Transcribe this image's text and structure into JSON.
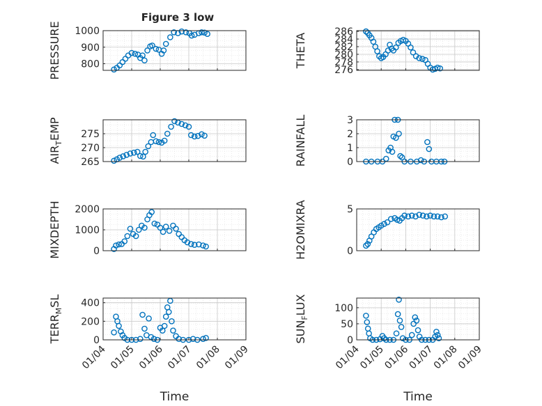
{
  "title": "Figure 3 low",
  "colors": {
    "marker": "#0072bd",
    "grid": "#dcdcdc",
    "axis": "#262626"
  },
  "chart_data": [
    {
      "type": "scatter",
      "id": "pressure",
      "ylabel": "PRESSURE",
      "ylim": [
        760,
        1000
      ],
      "yticks": [
        800,
        900,
        1000
      ],
      "yticklabels": [
        "800",
        "900",
        "1000"
      ],
      "xlim": [
        0,
        5
      ],
      "xticks": [
        0,
        1,
        2,
        3,
        4,
        5
      ],
      "xticklabels": [
        "01/04",
        "01/05",
        "01/06",
        "01/07",
        "01/08",
        "01/09"
      ],
      "show_xticklabels": false,
      "xlabel": "",
      "grid": true,
      "marker": "circle",
      "points": [
        [
          0.38,
          765
        ],
        [
          0.48,
          775
        ],
        [
          0.58,
          790
        ],
        [
          0.68,
          810
        ],
        [
          0.78,
          830
        ],
        [
          0.88,
          850
        ],
        [
          1.0,
          865
        ],
        [
          1.12,
          860
        ],
        [
          1.22,
          855
        ],
        [
          1.3,
          835
        ],
        [
          1.38,
          850
        ],
        [
          1.45,
          820
        ],
        [
          1.55,
          880
        ],
        [
          1.65,
          905
        ],
        [
          1.72,
          910
        ],
        [
          1.85,
          890
        ],
        [
          1.95,
          885
        ],
        [
          2.05,
          860
        ],
        [
          2.12,
          880
        ],
        [
          2.2,
          920
        ],
        [
          2.35,
          960
        ],
        [
          2.48,
          990
        ],
        [
          2.62,
          985
        ],
        [
          2.75,
          995
        ],
        [
          2.9,
          990
        ],
        [
          3.02,
          985
        ],
        [
          3.1,
          970
        ],
        [
          3.2,
          975
        ],
        [
          3.35,
          985
        ],
        [
          3.45,
          990
        ],
        [
          3.55,
          988
        ],
        [
          3.65,
          980
        ]
      ]
    },
    {
      "type": "scatter",
      "id": "theta",
      "ylabel": "THETA",
      "ylim": [
        275.8,
        286.2
      ],
      "yticks": [
        276,
        278,
        280,
        282,
        284,
        286
      ],
      "yticklabels": [
        "276",
        "278",
        "280",
        "282",
        "284",
        "286"
      ],
      "xlim": [
        0,
        5
      ],
      "xticks": [
        0,
        1,
        2,
        3,
        4,
        5
      ],
      "xticklabels": [
        "01/04",
        "01/05",
        "01/06",
        "01/07",
        "01/08",
        "01/09"
      ],
      "show_xticklabels": false,
      "xlabel": "",
      "grid": true,
      "marker": "circle",
      "points": [
        [
          0.38,
          286
        ],
        [
          0.45,
          285.6
        ],
        [
          0.52,
          285
        ],
        [
          0.6,
          284.3
        ],
        [
          0.68,
          283.3
        ],
        [
          0.76,
          282
        ],
        [
          0.84,
          280.8
        ],
        [
          0.92,
          279.5
        ],
        [
          1.0,
          279
        ],
        [
          1.08,
          279.3
        ],
        [
          1.18,
          280
        ],
        [
          1.28,
          281
        ],
        [
          1.35,
          282.5
        ],
        [
          1.42,
          281.5
        ],
        [
          1.5,
          281
        ],
        [
          1.6,
          281.8
        ],
        [
          1.7,
          283
        ],
        [
          1.8,
          283.5
        ],
        [
          1.9,
          283.8
        ],
        [
          2.0,
          283.5
        ],
        [
          2.1,
          282.8
        ],
        [
          2.2,
          281.8
        ],
        [
          2.3,
          280.5
        ],
        [
          2.42,
          279.5
        ],
        [
          2.55,
          279
        ],
        [
          2.68,
          278.8
        ],
        [
          2.8,
          278.5
        ],
        [
          2.9,
          277.5
        ],
        [
          3.0,
          276.5
        ],
        [
          3.1,
          276
        ],
        [
          3.2,
          276.2
        ],
        [
          3.3,
          276.5
        ],
        [
          3.4,
          276.3
        ]
      ]
    },
    {
      "type": "scatter",
      "id": "air_temp",
      "ylabel": "AIR_TEMP",
      "ylim": [
        265,
        280
      ],
      "yticks": [
        265,
        270,
        275
      ],
      "yticklabels": [
        "265",
        "270",
        "275"
      ],
      "xlim": [
        0,
        5
      ],
      "xticks": [
        0,
        1,
        2,
        3,
        4,
        5
      ],
      "xticklabels": [
        "01/04",
        "01/05",
        "01/06",
        "01/07",
        "01/08",
        "01/09"
      ],
      "show_xticklabels": false,
      "xlabel": "",
      "grid": true,
      "marker": "circle",
      "points": [
        [
          0.38,
          265.3
        ],
        [
          0.48,
          265.8
        ],
        [
          0.58,
          266.4
        ],
        [
          0.7,
          266.9
        ],
        [
          0.82,
          267.4
        ],
        [
          0.95,
          267.9
        ],
        [
          1.08,
          268.2
        ],
        [
          1.2,
          268.5
        ],
        [
          1.3,
          267.0
        ],
        [
          1.4,
          266.8
        ],
        [
          1.48,
          268.5
        ],
        [
          1.58,
          270.5
        ],
        [
          1.68,
          272.0
        ],
        [
          1.75,
          274.5
        ],
        [
          1.85,
          272.3
        ],
        [
          1.95,
          272.0
        ],
        [
          2.05,
          271.8
        ],
        [
          2.15,
          272.5
        ],
        [
          2.25,
          275.0
        ],
        [
          2.38,
          277.5
        ],
        [
          2.5,
          279.5
        ],
        [
          2.62,
          279.0
        ],
        [
          2.75,
          278.5
        ],
        [
          2.88,
          278.0
        ],
        [
          3.0,
          277.5
        ],
        [
          3.08,
          274.5
        ],
        [
          3.2,
          274.0
        ],
        [
          3.32,
          274.2
        ],
        [
          3.45,
          274.8
        ],
        [
          3.55,
          274.3
        ]
      ]
    },
    {
      "type": "scatter",
      "id": "rainfall",
      "ylabel": "RAINFALL",
      "ylim": [
        0,
        3
      ],
      "yticks": [
        0,
        1,
        2,
        3
      ],
      "yticklabels": [
        "0",
        "1",
        "2",
        "3"
      ],
      "xlim": [
        0,
        5
      ],
      "xticks": [
        0,
        1,
        2,
        3,
        4,
        5
      ],
      "xticklabels": [
        "01/04",
        "01/05",
        "01/06",
        "01/07",
        "01/08",
        "01/09"
      ],
      "show_xticklabels": false,
      "xlabel": "",
      "grid": true,
      "marker": "circle",
      "points": [
        [
          0.38,
          0
        ],
        [
          0.6,
          0
        ],
        [
          0.85,
          0
        ],
        [
          1.05,
          0
        ],
        [
          1.2,
          0.2
        ],
        [
          1.3,
          0.8
        ],
        [
          1.38,
          1.0
        ],
        [
          1.45,
          0.7
        ],
        [
          1.5,
          1.8
        ],
        [
          1.55,
          3.0
        ],
        [
          1.6,
          1.7
        ],
        [
          1.68,
          3.0
        ],
        [
          1.72,
          2.0
        ],
        [
          1.78,
          0.4
        ],
        [
          1.85,
          0.3
        ],
        [
          1.95,
          0
        ],
        [
          2.2,
          0
        ],
        [
          2.45,
          0
        ],
        [
          2.62,
          0.1
        ],
        [
          2.75,
          0
        ],
        [
          2.88,
          1.4
        ],
        [
          2.95,
          0.9
        ],
        [
          3.05,
          0
        ],
        [
          3.25,
          0
        ],
        [
          3.45,
          0
        ],
        [
          3.58,
          0
        ]
      ]
    },
    {
      "type": "scatter",
      "id": "mixdepth",
      "ylabel": "MIXDEPTH",
      "ylim": [
        0,
        2000
      ],
      "yticks": [
        0,
        1000,
        2000
      ],
      "yticklabels": [
        "0",
        "1000",
        "2000"
      ],
      "xlim": [
        0,
        5
      ],
      "xticks": [
        0,
        1,
        2,
        3,
        4,
        5
      ],
      "xticklabels": [
        "01/04",
        "01/05",
        "01/06",
        "01/07",
        "01/08",
        "01/09"
      ],
      "show_xticklabels": false,
      "xlabel": "",
      "grid": true,
      "marker": "circle",
      "points": [
        [
          0.38,
          80
        ],
        [
          0.45,
          250
        ],
        [
          0.55,
          300
        ],
        [
          0.65,
          320
        ],
        [
          0.75,
          450
        ],
        [
          0.85,
          700
        ],
        [
          0.95,
          1050
        ],
        [
          1.05,
          800
        ],
        [
          1.15,
          700
        ],
        [
          1.25,
          1000
        ],
        [
          1.35,
          1200
        ],
        [
          1.45,
          1100
        ],
        [
          1.55,
          1500
        ],
        [
          1.62,
          1700
        ],
        [
          1.7,
          1850
        ],
        [
          1.8,
          1300
        ],
        [
          1.9,
          1250
        ],
        [
          2.0,
          1100
        ],
        [
          2.1,
          900
        ],
        [
          2.2,
          1150
        ],
        [
          2.32,
          950
        ],
        [
          2.45,
          1200
        ],
        [
          2.55,
          1050
        ],
        [
          2.65,
          800
        ],
        [
          2.75,
          650
        ],
        [
          2.85,
          500
        ],
        [
          2.95,
          400
        ],
        [
          3.08,
          320
        ],
        [
          3.2,
          280
        ],
        [
          3.35,
          300
        ],
        [
          3.5,
          250
        ],
        [
          3.6,
          200
        ]
      ]
    },
    {
      "type": "scatter",
      "id": "h2omixra",
      "ylabel": "H2OMIXRA",
      "ylim": [
        0,
        5
      ],
      "yticks": [
        0,
        5
      ],
      "yticklabels": [
        "0",
        "5"
      ],
      "xlim": [
        0,
        5
      ],
      "xticks": [
        0,
        1,
        2,
        3,
        4,
        5
      ],
      "xticklabels": [
        "01/04",
        "01/05",
        "01/06",
        "01/07",
        "01/08",
        "01/09"
      ],
      "show_xticklabels": false,
      "xlabel": "",
      "grid": true,
      "marker": "circle",
      "points": [
        [
          0.38,
          0.6
        ],
        [
          0.45,
          0.8
        ],
        [
          0.52,
          1.2
        ],
        [
          0.6,
          1.7
        ],
        [
          0.7,
          2.2
        ],
        [
          0.8,
          2.6
        ],
        [
          0.9,
          2.8
        ],
        [
          1.0,
          3.0
        ],
        [
          1.12,
          3.2
        ],
        [
          1.25,
          3.4
        ],
        [
          1.4,
          3.8
        ],
        [
          1.55,
          3.9
        ],
        [
          1.65,
          3.7
        ],
        [
          1.75,
          3.6
        ],
        [
          1.85,
          3.9
        ],
        [
          1.95,
          4.2
        ],
        [
          2.1,
          4.1
        ],
        [
          2.25,
          4.2
        ],
        [
          2.4,
          4.1
        ],
        [
          2.55,
          4.3
        ],
        [
          2.7,
          4.2
        ],
        [
          2.85,
          4.1
        ],
        [
          3.0,
          4.2
        ],
        [
          3.15,
          4.1
        ],
        [
          3.3,
          4.1
        ],
        [
          3.45,
          4.0
        ],
        [
          3.6,
          4.1
        ]
      ]
    },
    {
      "type": "scatter",
      "id": "terr_msl",
      "ylabel": "TERR_MSL",
      "ylim": [
        0,
        450
      ],
      "yticks": [
        0,
        200,
        400
      ],
      "yticklabels": [
        "0",
        "200",
        "400"
      ],
      "xlim": [
        0,
        5
      ],
      "xticks": [
        0,
        1,
        2,
        3,
        4,
        5
      ],
      "xticklabels": [
        "01/04",
        "01/05",
        "01/06",
        "01/07",
        "01/08",
        "01/09"
      ],
      "show_xticklabels": true,
      "xlabel": "Time",
      "grid": true,
      "marker": "circle",
      "points": [
        [
          0.38,
          80
        ],
        [
          0.45,
          250
        ],
        [
          0.5,
          200
        ],
        [
          0.55,
          150
        ],
        [
          0.62,
          90
        ],
        [
          0.68,
          50
        ],
        [
          0.75,
          20
        ],
        [
          0.85,
          0
        ],
        [
          1.0,
          0
        ],
        [
          1.15,
          0
        ],
        [
          1.3,
          10
        ],
        [
          1.38,
          270
        ],
        [
          1.45,
          120
        ],
        [
          1.52,
          50
        ],
        [
          1.6,
          230
        ],
        [
          1.68,
          30
        ],
        [
          1.78,
          10
        ],
        [
          1.9,
          0
        ],
        [
          2.0,
          130
        ],
        [
          2.08,
          100
        ],
        [
          2.15,
          150
        ],
        [
          2.2,
          250
        ],
        [
          2.25,
          350
        ],
        [
          2.3,
          300
        ],
        [
          2.35,
          420
        ],
        [
          2.4,
          200
        ],
        [
          2.45,
          100
        ],
        [
          2.55,
          40
        ],
        [
          2.65,
          10
        ],
        [
          2.8,
          0
        ],
        [
          3.0,
          0
        ],
        [
          3.15,
          10
        ],
        [
          3.3,
          0
        ],
        [
          3.5,
          10
        ],
        [
          3.6,
          20
        ]
      ]
    },
    {
      "type": "scatter",
      "id": "sun_flux",
      "ylabel": "SUN_FLUX",
      "ylim": [
        0,
        130
      ],
      "yticks": [
        0,
        50,
        100
      ],
      "yticklabels": [
        "0",
        "50",
        "100"
      ],
      "xlim": [
        0,
        5
      ],
      "xticks": [
        0,
        1,
        2,
        3,
        4,
        5
      ],
      "xticklabels": [
        "01/04",
        "01/05",
        "01/06",
        "01/07",
        "01/08",
        "01/09"
      ],
      "show_xticklabels": true,
      "xlabel": "Time",
      "grid": true,
      "marker": "circle",
      "points": [
        [
          0.38,
          75
        ],
        [
          0.42,
          55
        ],
        [
          0.46,
          35
        ],
        [
          0.5,
          20
        ],
        [
          0.55,
          5
        ],
        [
          0.65,
          0
        ],
        [
          0.8,
          0
        ],
        [
          0.95,
          2
        ],
        [
          1.05,
          12
        ],
        [
          1.12,
          5
        ],
        [
          1.2,
          0
        ],
        [
          1.35,
          0
        ],
        [
          1.5,
          0
        ],
        [
          1.62,
          20
        ],
        [
          1.68,
          80
        ],
        [
          1.72,
          125
        ],
        [
          1.76,
          60
        ],
        [
          1.82,
          40
        ],
        [
          1.88,
          5
        ],
        [
          2.0,
          0
        ],
        [
          2.15,
          0
        ],
        [
          2.25,
          15
        ],
        [
          2.32,
          50
        ],
        [
          2.38,
          70
        ],
        [
          2.44,
          60
        ],
        [
          2.5,
          30
        ],
        [
          2.56,
          10
        ],
        [
          2.65,
          0
        ],
        [
          2.8,
          0
        ],
        [
          2.95,
          0
        ],
        [
          3.1,
          0
        ],
        [
          3.2,
          10
        ],
        [
          3.25,
          25
        ],
        [
          3.3,
          15
        ],
        [
          3.35,
          5
        ]
      ]
    }
  ]
}
